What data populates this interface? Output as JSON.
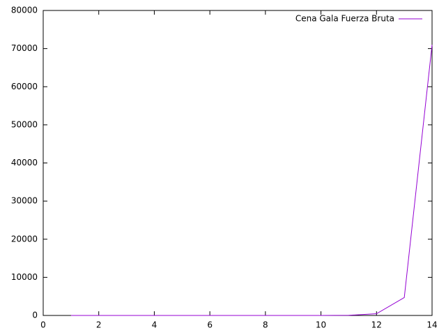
{
  "chart_data": {
    "type": "line",
    "x": [
      1,
      2,
      3,
      4,
      5,
      6,
      7,
      8,
      9,
      10,
      11,
      12,
      13,
      14
    ],
    "series": [
      {
        "name": "Cena Gala Fuerza Bruta",
        "color": "#9400d3",
        "values": [
          0,
          0,
          0,
          0,
          0,
          0,
          0,
          0,
          0,
          0,
          40,
          450,
          4700,
          71000
        ]
      }
    ],
    "xlim": [
      0,
      14
    ],
    "xticks": [
      0,
      2,
      4,
      6,
      8,
      10,
      12,
      14
    ],
    "ylim": [
      0,
      80000
    ],
    "yticks": [
      0,
      10000,
      20000,
      30000,
      40000,
      50000,
      60000,
      70000,
      80000
    ],
    "grid": false,
    "legend": "top-right"
  }
}
